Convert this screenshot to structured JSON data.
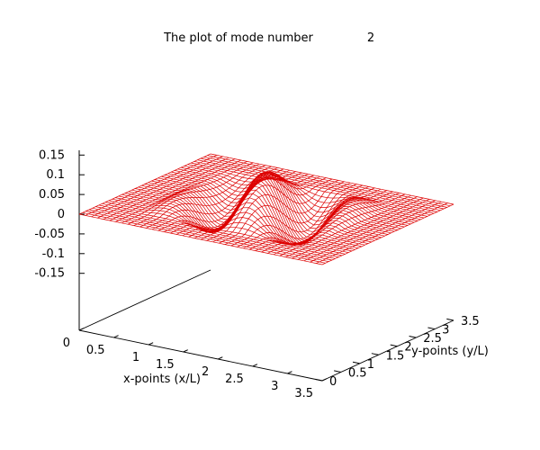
{
  "chart_data": {
    "type": "surface",
    "title": "The plot of mode number",
    "mode_number": "2",
    "xlabel": "x-points (x/L)",
    "ylabel": "y-points (y/L)",
    "zlabel": "",
    "x_range": [
      0,
      3.5
    ],
    "y_range": [
      0,
      3.5
    ],
    "z_range": [
      -0.15,
      0.15
    ],
    "x_ticks": [
      "0",
      "0.5",
      "1",
      "1.5",
      "2",
      "2.5",
      "3",
      "3.5"
    ],
    "y_ticks": [
      "0",
      "0.5",
      "1",
      "1.5",
      "2",
      "2.5",
      "3",
      "3.5"
    ],
    "z_ticks": [
      "0.15",
      "0.1",
      "0.05",
      "0",
      "-0.05",
      "-0.1",
      "-0.15"
    ],
    "surface_color": "#dd0000",
    "grid_resolution": 40,
    "mode_profile": {
      "nonzero_region_x": [
        0.5,
        3.0
      ],
      "nonzero_region_y": [
        0.5,
        3.0
      ],
      "peak_amplitude": 0.06,
      "description": "wave mode, flat (z=0) outside inner region"
    }
  }
}
